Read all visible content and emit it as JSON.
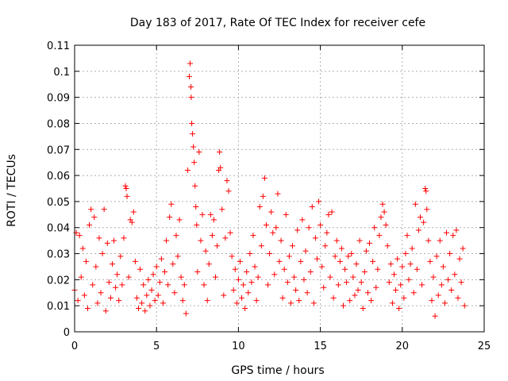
{
  "chart_data": {
    "type": "scatter",
    "title": "Day 183 of 2017, Rate Of TEC Index for receiver cefe",
    "xlabel": "GPS time / hours",
    "ylabel": "ROTI / TECUs",
    "xlim": [
      0,
      25
    ],
    "ylim": [
      0,
      0.11
    ],
    "xticks": [
      0,
      5,
      10,
      15,
      20,
      25
    ],
    "xtick_labels": [
      "0",
      "5",
      "10",
      "15",
      "20",
      "25"
    ],
    "yticks": [
      0,
      0.01,
      0.02,
      0.03,
      0.04,
      0.05,
      0.06,
      0.07,
      0.08,
      0.09,
      0.1,
      0.11
    ],
    "ytick_labels": [
      "0",
      "0.01",
      "0.02",
      "0.03",
      "0.04",
      "0.05",
      "0.06",
      "0.07",
      "0.08",
      "0.09",
      "0.1",
      "0.11"
    ],
    "grid": true,
    "marker": "+",
    "color": "#ff0000",
    "series": [
      {
        "name": "ROTI",
        "points": [
          [
            0.0,
            0.016
          ],
          [
            0.1,
            0.038
          ],
          [
            0.2,
            0.012
          ],
          [
            0.3,
            0.037
          ],
          [
            0.4,
            0.021
          ],
          [
            0.5,
            0.032
          ],
          [
            0.6,
            0.014
          ],
          [
            0.7,
            0.027
          ],
          [
            0.8,
            0.009
          ],
          [
            0.9,
            0.041
          ],
          [
            1.0,
            0.047
          ],
          [
            1.1,
            0.018
          ],
          [
            1.2,
            0.044
          ],
          [
            1.3,
            0.025
          ],
          [
            1.4,
            0.011
          ],
          [
            1.5,
            0.036
          ],
          [
            1.6,
            0.015
          ],
          [
            1.7,
            0.03
          ],
          [
            1.8,
            0.047
          ],
          [
            1.9,
            0.008
          ],
          [
            2.0,
            0.034
          ],
          [
            2.1,
            0.019
          ],
          [
            2.2,
            0.013
          ],
          [
            2.3,
            0.026
          ],
          [
            2.4,
            0.035
          ],
          [
            2.5,
            0.017
          ],
          [
            2.6,
            0.022
          ],
          [
            2.7,
            0.012
          ],
          [
            2.8,
            0.029
          ],
          [
            2.9,
            0.018
          ],
          [
            3.0,
            0.036
          ],
          [
            3.1,
            0.056
          ],
          [
            3.15,
            0.055
          ],
          [
            3.2,
            0.052
          ],
          [
            3.3,
            0.021
          ],
          [
            3.4,
            0.043
          ],
          [
            3.5,
            0.042
          ],
          [
            3.6,
            0.046
          ],
          [
            3.7,
            0.027
          ],
          [
            3.8,
            0.013
          ],
          [
            3.9,
            0.009
          ],
          [
            4.0,
            0.024
          ],
          [
            4.1,
            0.011
          ],
          [
            4.2,
            0.018
          ],
          [
            4.3,
            0.008
          ],
          [
            4.4,
            0.014
          ],
          [
            4.5,
            0.02
          ],
          [
            4.6,
            0.01
          ],
          [
            4.7,
            0.016
          ],
          [
            4.8,
            0.022
          ],
          [
            4.9,
            0.012
          ],
          [
            5.0,
            0.025
          ],
          [
            5.1,
            0.014
          ],
          [
            5.2,
            0.019
          ],
          [
            5.3,
            0.028
          ],
          [
            5.4,
            0.011
          ],
          [
            5.5,
            0.023
          ],
          [
            5.6,
            0.035
          ],
          [
            5.7,
            0.018
          ],
          [
            5.8,
            0.044
          ],
          [
            5.9,
            0.049
          ],
          [
            6.0,
            0.026
          ],
          [
            6.1,
            0.015
          ],
          [
            6.2,
            0.037
          ],
          [
            6.3,
            0.029
          ],
          [
            6.4,
            0.043
          ],
          [
            6.5,
            0.021
          ],
          [
            6.6,
            0.012
          ],
          [
            6.7,
            0.018
          ],
          [
            6.8,
            0.007
          ],
          [
            6.9,
            0.062
          ],
          [
            7.0,
            0.098
          ],
          [
            7.05,
            0.103
          ],
          [
            7.1,
            0.094
          ],
          [
            7.12,
            0.09
          ],
          [
            7.15,
            0.08
          ],
          [
            7.2,
            0.076
          ],
          [
            7.25,
            0.071
          ],
          [
            7.3,
            0.065
          ],
          [
            7.35,
            0.056
          ],
          [
            7.4,
            0.048
          ],
          [
            7.45,
            0.041
          ],
          [
            7.5,
            0.023
          ],
          [
            7.6,
            0.069
          ],
          [
            7.7,
            0.035
          ],
          [
            7.8,
            0.045
          ],
          [
            7.9,
            0.018
          ],
          [
            8.0,
            0.031
          ],
          [
            8.1,
            0.012
          ],
          [
            8.2,
            0.026
          ],
          [
            8.3,
            0.045
          ],
          [
            8.4,
            0.037
          ],
          [
            8.5,
            0.043
          ],
          [
            8.6,
            0.021
          ],
          [
            8.7,
            0.033
          ],
          [
            8.8,
            0.062
          ],
          [
            8.85,
            0.069
          ],
          [
            8.9,
            0.063
          ],
          [
            9.0,
            0.047
          ],
          [
            9.1,
            0.014
          ],
          [
            9.2,
            0.036
          ],
          [
            9.3,
            0.058
          ],
          [
            9.4,
            0.054
          ],
          [
            9.5,
            0.038
          ],
          [
            9.6,
            0.029
          ],
          [
            9.7,
            0.016
          ],
          [
            9.8,
            0.024
          ],
          [
            9.9,
            0.011
          ],
          [
            10.0,
            0.02
          ],
          [
            10.1,
            0.027
          ],
          [
            10.2,
            0.013
          ],
          [
            10.3,
            0.018
          ],
          [
            10.4,
            0.009
          ],
          [
            10.5,
            0.023
          ],
          [
            10.6,
            0.015
          ],
          [
            10.7,
            0.03
          ],
          [
            10.8,
            0.019
          ],
          [
            10.9,
            0.037
          ],
          [
            11.0,
            0.025
          ],
          [
            11.1,
            0.012
          ],
          [
            11.2,
            0.021
          ],
          [
            11.3,
            0.048
          ],
          [
            11.4,
            0.033
          ],
          [
            11.5,
            0.052
          ],
          [
            11.6,
            0.059
          ],
          [
            11.7,
            0.041
          ],
          [
            11.8,
            0.018
          ],
          [
            11.9,
            0.03
          ],
          [
            12.0,
            0.046
          ],
          [
            12.1,
            0.038
          ],
          [
            12.2,
            0.022
          ],
          [
            12.3,
            0.04
          ],
          [
            12.4,
            0.053
          ],
          [
            12.5,
            0.027
          ],
          [
            12.6,
            0.035
          ],
          [
            12.7,
            0.013
          ],
          [
            12.8,
            0.024
          ],
          [
            12.9,
            0.045
          ],
          [
            13.0,
            0.019
          ],
          [
            13.1,
            0.029
          ],
          [
            13.2,
            0.011
          ],
          [
            13.3,
            0.033
          ],
          [
            13.4,
            0.021
          ],
          [
            13.5,
            0.016
          ],
          [
            13.6,
            0.039
          ],
          [
            13.7,
            0.012
          ],
          [
            13.8,
            0.027
          ],
          [
            13.9,
            0.043
          ],
          [
            14.0,
            0.02
          ],
          [
            14.1,
            0.031
          ],
          [
            14.2,
            0.015
          ],
          [
            14.3,
            0.04
          ],
          [
            14.4,
            0.023
          ],
          [
            14.5,
            0.048
          ],
          [
            14.6,
            0.011
          ],
          [
            14.7,
            0.036
          ],
          [
            14.8,
            0.028
          ],
          [
            14.9,
            0.05
          ],
          [
            15.0,
            0.041
          ],
          [
            15.1,
            0.025
          ],
          [
            15.2,
            0.017
          ],
          [
            15.3,
            0.033
          ],
          [
            15.4,
            0.038
          ],
          [
            15.5,
            0.045
          ],
          [
            15.6,
            0.021
          ],
          [
            15.7,
            0.046
          ],
          [
            15.8,
            0.013
          ],
          [
            15.9,
            0.029
          ],
          [
            16.0,
            0.035
          ],
          [
            16.1,
            0.018
          ],
          [
            16.2,
            0.027
          ],
          [
            16.3,
            0.032
          ],
          [
            16.4,
            0.01
          ],
          [
            16.5,
            0.024
          ],
          [
            16.6,
            0.019
          ],
          [
            16.7,
            0.029
          ],
          [
            16.8,
            0.012
          ],
          [
            16.9,
            0.03
          ],
          [
            17.0,
            0.021
          ],
          [
            17.1,
            0.014
          ],
          [
            17.2,
            0.026
          ],
          [
            17.3,
            0.016
          ],
          [
            17.4,
            0.035
          ],
          [
            17.5,
            0.019
          ],
          [
            17.6,
            0.009
          ],
          [
            17.7,
            0.023
          ],
          [
            17.8,
            0.031
          ],
          [
            17.9,
            0.015
          ],
          [
            18.0,
            0.034
          ],
          [
            18.1,
            0.012
          ],
          [
            18.2,
            0.027
          ],
          [
            18.3,
            0.04
          ],
          [
            18.4,
            0.017
          ],
          [
            18.5,
            0.024
          ],
          [
            18.6,
            0.037
          ],
          [
            18.7,
            0.044
          ],
          [
            18.8,
            0.049
          ],
          [
            18.9,
            0.046
          ],
          [
            19.0,
            0.041
          ],
          [
            19.1,
            0.033
          ],
          [
            19.2,
            0.019
          ],
          [
            19.3,
            0.026
          ],
          [
            19.4,
            0.011
          ],
          [
            19.5,
            0.022
          ],
          [
            19.6,
            0.016
          ],
          [
            19.7,
            0.028
          ],
          [
            19.8,
            0.009
          ],
          [
            19.9,
            0.018
          ],
          [
            20.0,
            0.025
          ],
          [
            20.1,
            0.013
          ],
          [
            20.2,
            0.03
          ],
          [
            20.3,
            0.037
          ],
          [
            20.4,
            0.02
          ],
          [
            20.5,
            0.026
          ],
          [
            20.6,
            0.032
          ],
          [
            20.7,
            0.015
          ],
          [
            20.8,
            0.049
          ],
          [
            20.9,
            0.024
          ],
          [
            21.0,
            0.039
          ],
          [
            21.1,
            0.044
          ],
          [
            21.2,
            0.018
          ],
          [
            21.3,
            0.042
          ],
          [
            21.4,
            0.055
          ],
          [
            21.45,
            0.054
          ],
          [
            21.5,
            0.047
          ],
          [
            21.6,
            0.035
          ],
          [
            21.7,
            0.027
          ],
          [
            21.8,
            0.012
          ],
          [
            21.9,
            0.021
          ],
          [
            22.0,
            0.006
          ],
          [
            22.1,
            0.029
          ],
          [
            22.2,
            0.014
          ],
          [
            22.3,
            0.035
          ],
          [
            22.4,
            0.018
          ],
          [
            22.5,
            0.025
          ],
          [
            22.6,
            0.011
          ],
          [
            22.7,
            0.038
          ],
          [
            22.8,
            0.02
          ],
          [
            22.9,
            0.03
          ],
          [
            23.0,
            0.016
          ],
          [
            23.1,
            0.037
          ],
          [
            23.2,
            0.022
          ],
          [
            23.3,
            0.039
          ],
          [
            23.4,
            0.013
          ],
          [
            23.5,
            0.028
          ],
          [
            23.6,
            0.019
          ],
          [
            23.7,
            0.032
          ],
          [
            23.8,
            0.01
          ]
        ]
      }
    ]
  }
}
